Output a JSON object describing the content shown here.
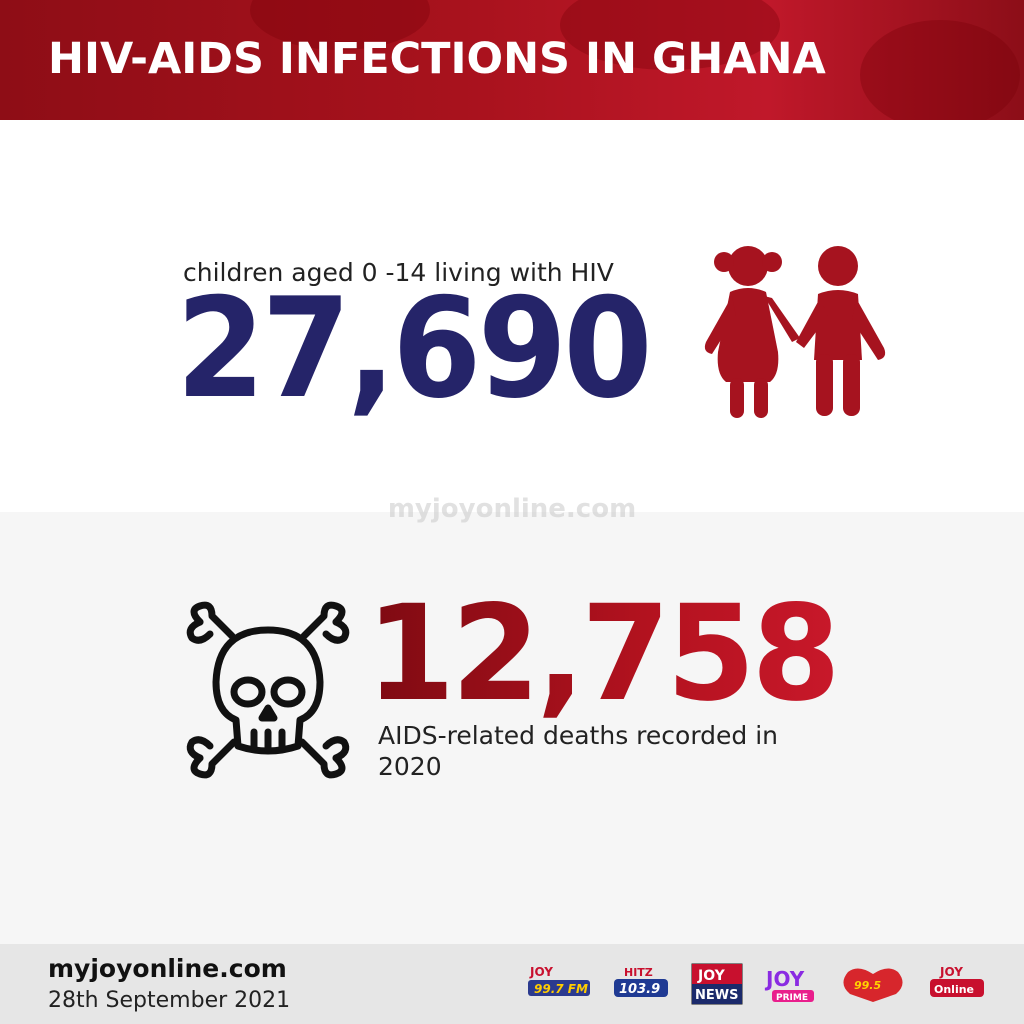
{
  "header": {
    "title": "HIV-AIDS INFECTIONS IN GHANA"
  },
  "stat_children": {
    "label": "children aged 0 -14 living with HIV",
    "value": "27,690",
    "icon": "children-icon"
  },
  "watermark": "myjoyonline.com",
  "stat_deaths": {
    "value": "12,758",
    "label": "AIDS-related deaths recorded in 2020",
    "icon": "skull-crossbones-icon"
  },
  "footer": {
    "site": "myjoyonline.com",
    "date": "28th September 2021"
  },
  "colors": {
    "header_red": "#a8121d",
    "navy": "#252469",
    "deaths_red": "#a8121d",
    "icon_red": "#a6131f"
  }
}
